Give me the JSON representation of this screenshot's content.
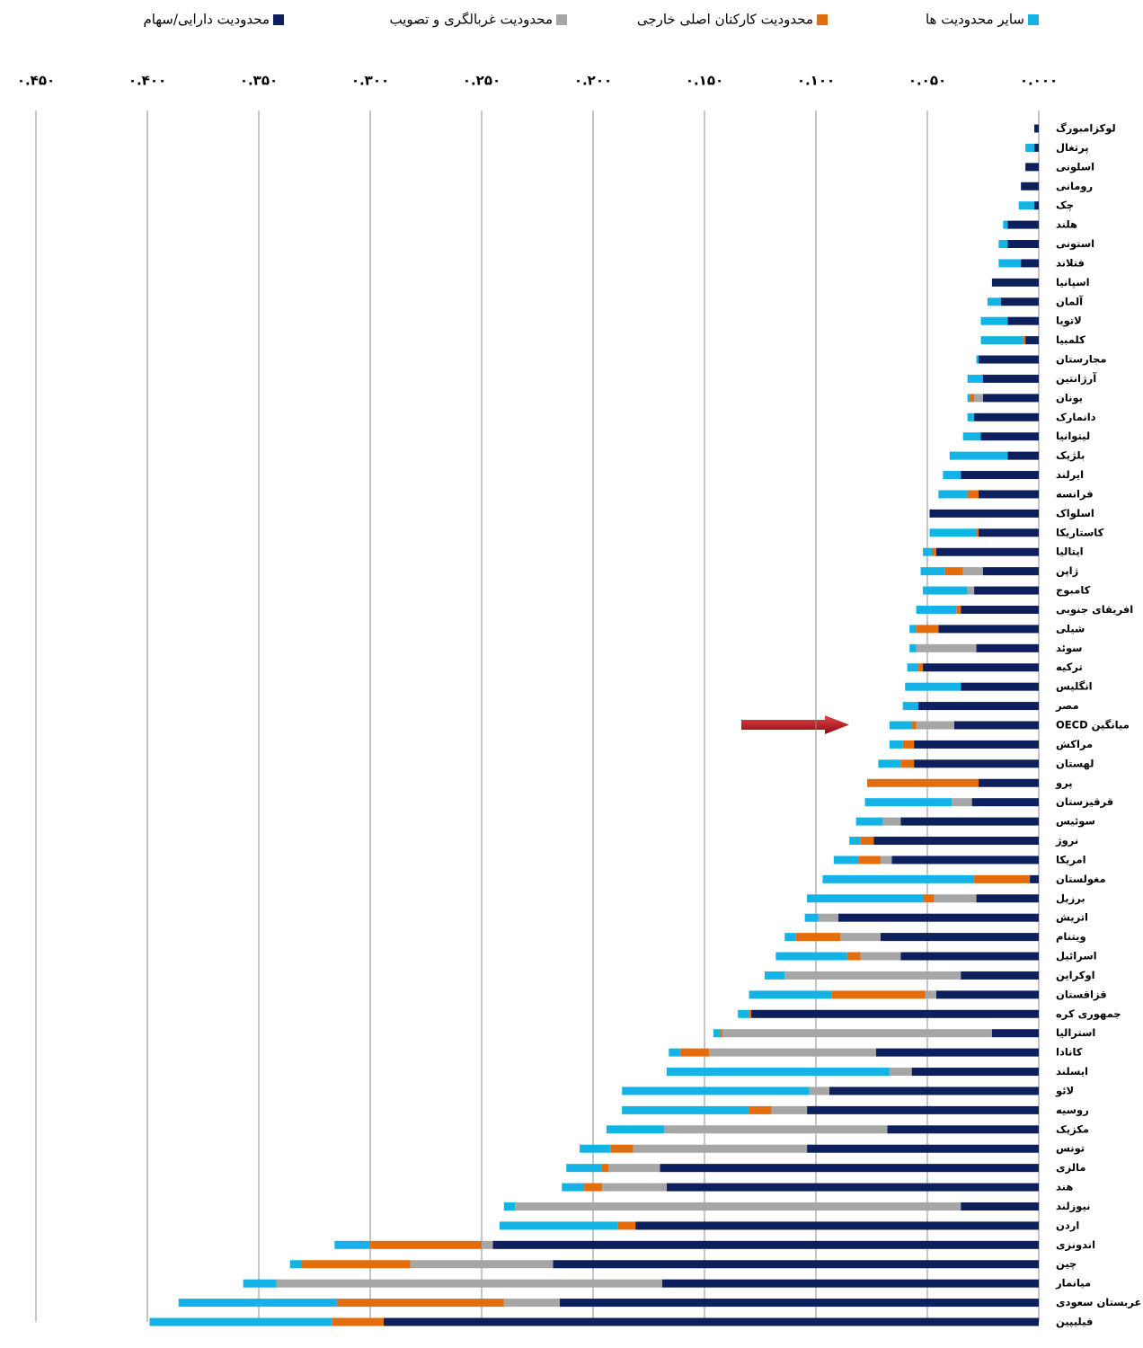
{
  "chart_data": {
    "type": "stacked-barh",
    "categories": [
      "لوکزامبورگ",
      "پرتغال",
      "اسلونی",
      "رومانی",
      "چک",
      "هلند",
      "استونی",
      "فنلاند",
      "اسپانیا",
      "آلمان",
      "لاتویا",
      "کلمبیا",
      "مجارستان",
      "آرژانتین",
      "یونان",
      "دانمارک",
      "لیتوانیا",
      "بلژیک",
      "ایرلند",
      "فرانسه",
      "اسلواک",
      "کاستاریکا",
      "ایتالیا",
      "ژاپن",
      "کامبوج",
      "افریقای جنوبی",
      "شیلی",
      "سوئد",
      "ترکیه",
      "انگلیس",
      "مصر",
      "میانگین OECD",
      "مراکش",
      "لهستان",
      "پرو",
      "قرقیزستان",
      "سوئیس",
      "نروژ",
      "امریکا",
      "مغولستان",
      "برزیل",
      "اتریش",
      "ویتنام",
      "اسرائیل",
      "اوکراین",
      "قزاقستان",
      "جمهوری کره",
      "استرالیا",
      "کانادا",
      "ایسلند",
      "لائو",
      "روسیه",
      "مکزیک",
      "تونس",
      "مالزی",
      "هند",
      "نیوزلند",
      "اردن",
      "اندونزی",
      "چین",
      "میانمار",
      "عربستان سعودی",
      "فیلیپین"
    ],
    "series": [
      {
        "name": "محدودیت دارایی/سهام",
        "color": "#0d1f5c",
        "values": [
          0.002,
          0.002,
          0.006,
          0.008,
          0.002,
          0.014,
          0.014,
          0.008,
          0.021,
          0.017,
          0.014,
          0.006,
          0.027,
          0.025,
          0.025,
          0.029,
          0.026,
          0.014,
          0.035,
          0.027,
          0.049,
          0.027,
          0.046,
          0.025,
          0.029,
          0.035,
          0.045,
          0.028,
          0.052,
          0.035,
          0.054,
          0.038,
          0.056,
          0.056,
          0.027,
          0.03,
          0.062,
          0.074,
          0.066,
          0.004,
          0.028,
          0.09,
          0.071,
          0.062,
          0.035,
          0.046,
          0.129,
          0.021,
          0.073,
          0.057,
          0.094,
          0.104,
          0.068,
          0.104,
          0.17,
          0.167,
          0.035,
          0.181,
          0.245,
          0.218,
          0.169,
          0.215,
          0.294
        ]
      },
      {
        "name": "محدودیت غربالگری و تصویب",
        "color": "#a6a6a6",
        "values": [
          0,
          0,
          0,
          0,
          0,
          0,
          0,
          0,
          0,
          0,
          0,
          0,
          0,
          0,
          0.004,
          0,
          0,
          0,
          0,
          0,
          0,
          0,
          0,
          0.009,
          0.003,
          0,
          0,
          0.027,
          0,
          0,
          0,
          0.017,
          0,
          0,
          0,
          0.009,
          0.008,
          0,
          0.005,
          0,
          0.019,
          0.009,
          0.018,
          0.018,
          0.079,
          0.005,
          0,
          0.121,
          0.075,
          0.01,
          0.009,
          0.016,
          0.1,
          0.078,
          0.023,
          0.029,
          0.2,
          0,
          0.005,
          0.064,
          0.173,
          0.025,
          0
        ]
      },
      {
        "name": "محدودیت کارکنان اصلی خارجی",
        "color": "#e46c0a",
        "values": [
          0,
          0,
          0,
          0,
          0,
          0,
          0,
          0,
          0,
          0,
          0,
          0.001,
          0,
          0,
          0.002,
          0,
          0,
          0,
          0,
          0.005,
          0,
          0.001,
          0.002,
          0.008,
          0,
          0.002,
          0.01,
          0,
          0.002,
          0,
          0,
          0.002,
          0.005,
          0.006,
          0.05,
          0,
          0,
          0.006,
          0.01,
          0.025,
          0.005,
          0,
          0.02,
          0.006,
          0,
          0.042,
          0.001,
          0.001,
          0.013,
          0,
          0,
          0.01,
          0,
          0.01,
          0.003,
          0.008,
          0,
          0.008,
          0.05,
          0.049,
          0,
          0.075,
          0.023
        ]
      },
      {
        "name": "سایر محدودیت ها",
        "color": "#14b3e6",
        "values": [
          0,
          0.004,
          0,
          0,
          0.007,
          0.002,
          0.004,
          0.01,
          0,
          0.006,
          0.012,
          0.019,
          0.001,
          0.007,
          0.001,
          0.003,
          0.008,
          0.026,
          0.008,
          0.013,
          0,
          0.021,
          0.004,
          0.011,
          0.02,
          0.018,
          0.003,
          0.003,
          0.005,
          0.025,
          0.007,
          0.01,
          0.006,
          0.01,
          0,
          0.039,
          0.012,
          0.005,
          0.011,
          0.068,
          0.052,
          0.006,
          0.005,
          0.032,
          0.009,
          0.037,
          0.005,
          0.003,
          0.005,
          0.1,
          0.084,
          0.057,
          0.026,
          0.014,
          0.016,
          0.01,
          0.005,
          0.053,
          0.016,
          0.005,
          0.015,
          0.071,
          0.082
        ]
      }
    ],
    "xlim": [
      0,
      0.45
    ],
    "x_reversed": true,
    "xticks": [
      {
        "value": 0,
        "label": "۰.۰۰۰"
      },
      {
        "value": 0.05,
        "label": "۰.۰۵۰"
      },
      {
        "value": 0.1,
        "label": "۰.۱۰۰"
      },
      {
        "value": 0.15,
        "label": "۰.۱۵۰"
      },
      {
        "value": 0.2,
        "label": "۰.۲۰۰"
      },
      {
        "value": 0.25,
        "label": "۰.۲۵۰"
      },
      {
        "value": 0.3,
        "label": "۰.۳۰۰"
      },
      {
        "value": 0.35,
        "label": "۰.۳۵۰"
      },
      {
        "value": 0.4,
        "label": "۰.۴۰۰"
      },
      {
        "value": 0.45,
        "label": "۰.۴۵۰"
      }
    ],
    "grid": true,
    "legend": "top"
  }
}
